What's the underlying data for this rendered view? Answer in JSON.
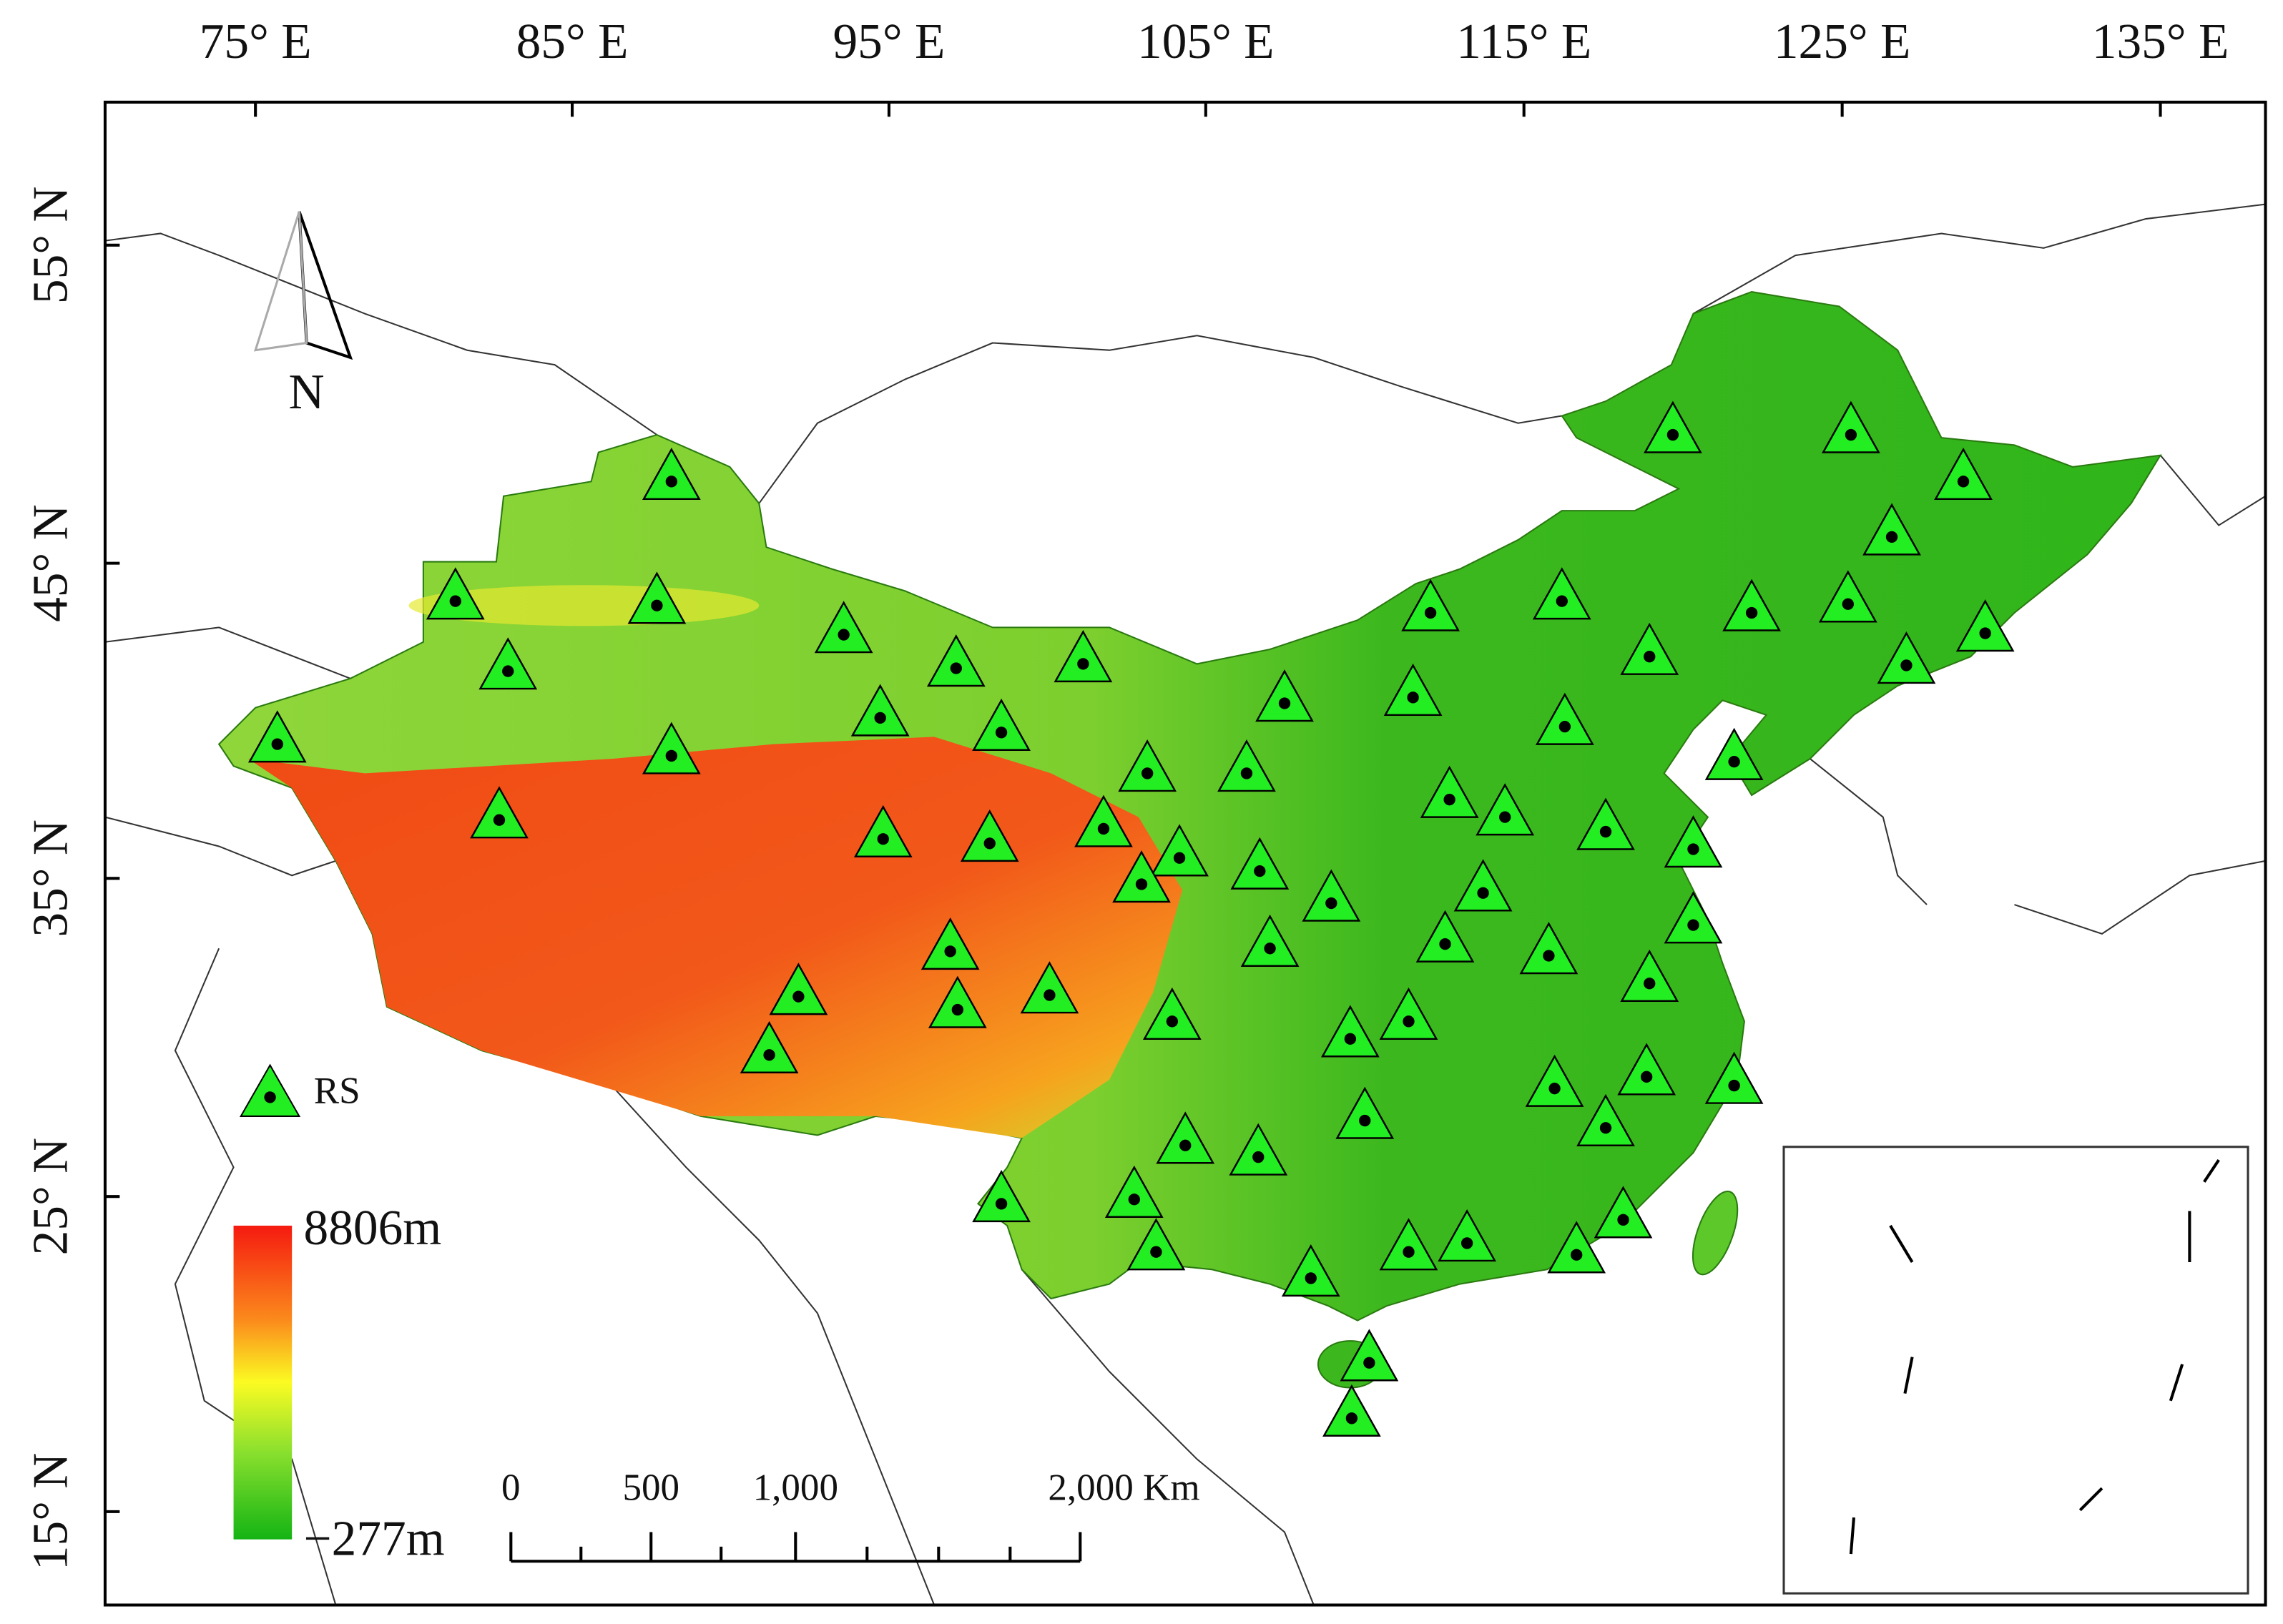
{
  "longitude_labels": [
    "75° E",
    "85° E",
    "95° E",
    "105° E",
    "115° E",
    "125° E",
    "135° E"
  ],
  "latitude_labels": [
    "55° N",
    "45° N",
    "35° N",
    "25° N",
    "15° N"
  ],
  "north_label": "N",
  "legend": {
    "label": "RS"
  },
  "colorbar": {
    "max_label": "8806m",
    "min_label": "−277m"
  },
  "scale_bar": {
    "labels": [
      "0",
      "500",
      "1,000",
      "2,000 Km"
    ]
  }
}
